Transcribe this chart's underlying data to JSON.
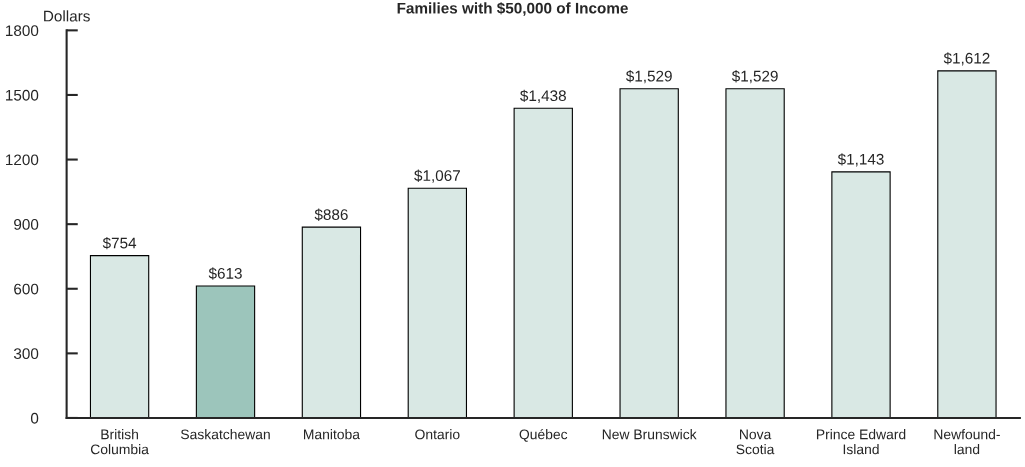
{
  "chart_data": {
    "type": "bar",
    "title": "Families with $50,000 of Income",
    "ylabel": "Dollars",
    "categories": [
      "British\nColumbia",
      "Saskatchewan",
      "Manitoba",
      "Ontario",
      "Québec",
      "New Brunswick",
      "Nova\nScotia",
      "Prince Edward\nIsland",
      "Newfound-\nland"
    ],
    "values": [
      754,
      613,
      886,
      1067,
      1438,
      1529,
      1529,
      1143,
      1612
    ],
    "value_labels": [
      "$754",
      "$613",
      "$886",
      "$1,067",
      "$1,438",
      "$1,529",
      "$1,529",
      "$1,143",
      "$1,612"
    ],
    "colors": [
      "#d9e8e4",
      "#9cc5bb",
      "#d9e8e4",
      "#d9e8e4",
      "#d9e8e4",
      "#d9e8e4",
      "#d9e8e4",
      "#d9e8e4",
      "#d9e8e4"
    ],
    "ylim": [
      0,
      1800
    ],
    "yticks": [
      0,
      300,
      600,
      900,
      1200,
      1500,
      1800
    ],
    "grid": false,
    "legend": false
  }
}
